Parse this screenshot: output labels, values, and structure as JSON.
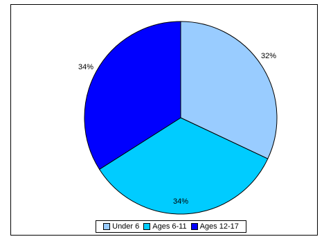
{
  "chart_data": {
    "type": "pie",
    "title": "",
    "categories": [
      "Under 6",
      "Ages 6-11",
      "Ages 12-17"
    ],
    "values": [
      32,
      34,
      34
    ],
    "labels": [
      "32%",
      "34%",
      "34%"
    ],
    "colors": [
      "#99ccff",
      "#00ccff",
      "#0000ff"
    ],
    "legend_placement": "bottom",
    "start_angle_deg": 0,
    "direction": "clockwise"
  }
}
